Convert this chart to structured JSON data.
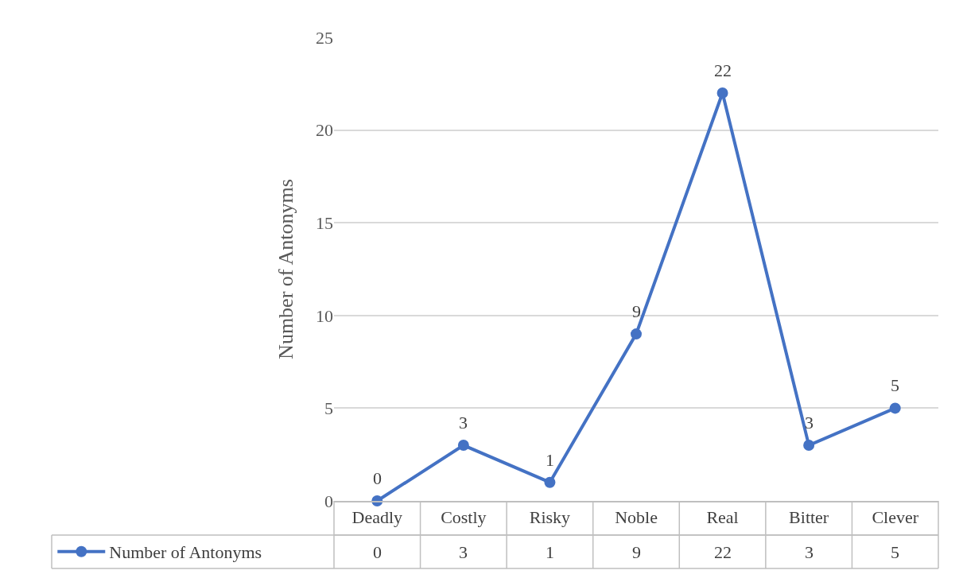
{
  "chart_data": {
    "type": "line",
    "ylabel": "Number of Antonyms",
    "categories": [
      "Deadly",
      "Costly",
      "Risky",
      "Noble",
      "Real",
      "Bitter",
      "Clever"
    ],
    "series": [
      {
        "name": "Number of Antonyms",
        "color": "#4472c4",
        "values": [
          0,
          3,
          1,
          9,
          22,
          3,
          5
        ],
        "value_labels": [
          "0",
          "3",
          "1",
          "9",
          "22",
          "3",
          "5"
        ]
      }
    ],
    "ylim": [
      0,
      25
    ],
    "yticks": [
      0,
      5,
      10,
      15,
      20,
      25
    ],
    "grid": "y",
    "marker": "circle",
    "line_style": "solid",
    "data_labels": true,
    "annotations": [
      "0",
      "3",
      "1",
      "9",
      "22",
      "3",
      "5"
    ],
    "legend": "bottom"
  }
}
